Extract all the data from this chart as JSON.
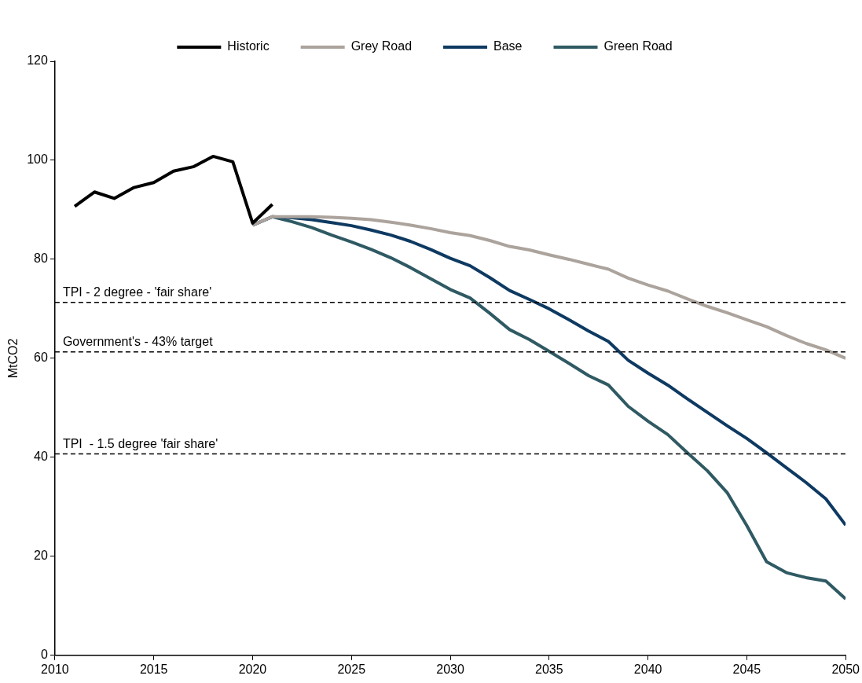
{
  "chart_data": {
    "type": "line",
    "ylabel": "MtCO2",
    "xlim": [
      2010,
      2050
    ],
    "xticks": [
      2010,
      2015,
      2020,
      2025,
      2030,
      2035,
      2040,
      2045,
      2050
    ],
    "ylim": [
      0,
      120
    ],
    "yticks": [
      0,
      20,
      40,
      60,
      80,
      100,
      120
    ],
    "grid": false,
    "legend": "top",
    "marker": "none",
    "line_style": "solid",
    "series": [
      {
        "name": "Historic",
        "color": "#000000",
        "x": [
          2011,
          2012,
          2013,
          2014,
          2015,
          2016,
          2017,
          2018,
          2019,
          2020,
          2021
        ],
        "values": [
          90.7,
          93.6,
          92.3,
          94.5,
          95.5,
          97.8,
          98.7,
          100.8,
          99.7,
          87.3,
          91.1
        ]
      },
      {
        "name": "Grey Road",
        "color": "#aba39c",
        "x": [
          2020,
          2021,
          2022,
          2023,
          2024,
          2025,
          2026,
          2027,
          2028,
          2029,
          2030,
          2031,
          2032,
          2033,
          2034,
          2035,
          2036,
          2037,
          2038,
          2039,
          2040,
          2041,
          2042,
          2043,
          2044,
          2045,
          2046,
          2047,
          2048,
          2049,
          2050
        ],
        "values": [
          86.9,
          88.6,
          88.6,
          88.6,
          88.5,
          88.3,
          88.0,
          87.5,
          86.9,
          86.2,
          85.4,
          84.8,
          83.8,
          82.6,
          81.9,
          80.9,
          80.0,
          79.0,
          78.0,
          76.2,
          74.8,
          73.6,
          72.0,
          70.5,
          69.2,
          67.8,
          66.4,
          64.6,
          63.0,
          61.7,
          60.0
        ]
      },
      {
        "name": "Base",
        "color": "#0e3a62",
        "x": [
          2020,
          2021,
          2022,
          2023,
          2024,
          2025,
          2026,
          2027,
          2028,
          2029,
          2030,
          2031,
          2032,
          2033,
          2034,
          2035,
          2036,
          2037,
          2038,
          2039,
          2040,
          2041,
          2042,
          2043,
          2044,
          2045,
          2046,
          2047,
          2048,
          2049,
          2050
        ],
        "values": [
          86.9,
          88.6,
          88.4,
          88.0,
          87.4,
          86.8,
          85.9,
          84.9,
          83.6,
          82.0,
          80.2,
          78.7,
          76.3,
          73.7,
          71.9,
          70.0,
          67.8,
          65.5,
          63.4,
          59.6,
          57.0,
          54.6,
          51.8,
          49.1,
          46.4,
          43.8,
          40.9,
          37.9,
          34.9,
          31.6,
          26.3
        ]
      },
      {
        "name": "Green Road",
        "color": "#2f5a63",
        "x": [
          2020,
          2021,
          2022,
          2023,
          2024,
          2025,
          2026,
          2027,
          2028,
          2029,
          2030,
          2031,
          2032,
          2033,
          2034,
          2035,
          2036,
          2037,
          2038,
          2039,
          2040,
          2041,
          2042,
          2043,
          2044,
          2045,
          2046,
          2047,
          2048,
          2049,
          2050
        ],
        "values": [
          86.9,
          88.6,
          87.6,
          86.4,
          84.9,
          83.5,
          82.0,
          80.3,
          78.3,
          76.1,
          73.9,
          72.2,
          69.1,
          65.8,
          63.8,
          61.4,
          59.0,
          56.5,
          54.6,
          50.3,
          47.3,
          44.6,
          40.9,
          37.3,
          32.9,
          26.2,
          18.9,
          16.7,
          15.7,
          15.0,
          11.4
        ]
      }
    ],
    "ref_lines": [
      {
        "axis": "y",
        "value": 71.3,
        "label": "TPI - 2 degree - 'fair share'",
        "color": "#000000",
        "line_style": "dashed"
      },
      {
        "axis": "y",
        "value": 61.3,
        "label": "Government's - 43% target",
        "color": "#000000",
        "line_style": "dashed"
      },
      {
        "axis": "y",
        "value": 40.7,
        "label": "TPI  - 1.5 degree 'fair share'",
        "color": "#000000",
        "line_style": "dashed"
      }
    ]
  }
}
